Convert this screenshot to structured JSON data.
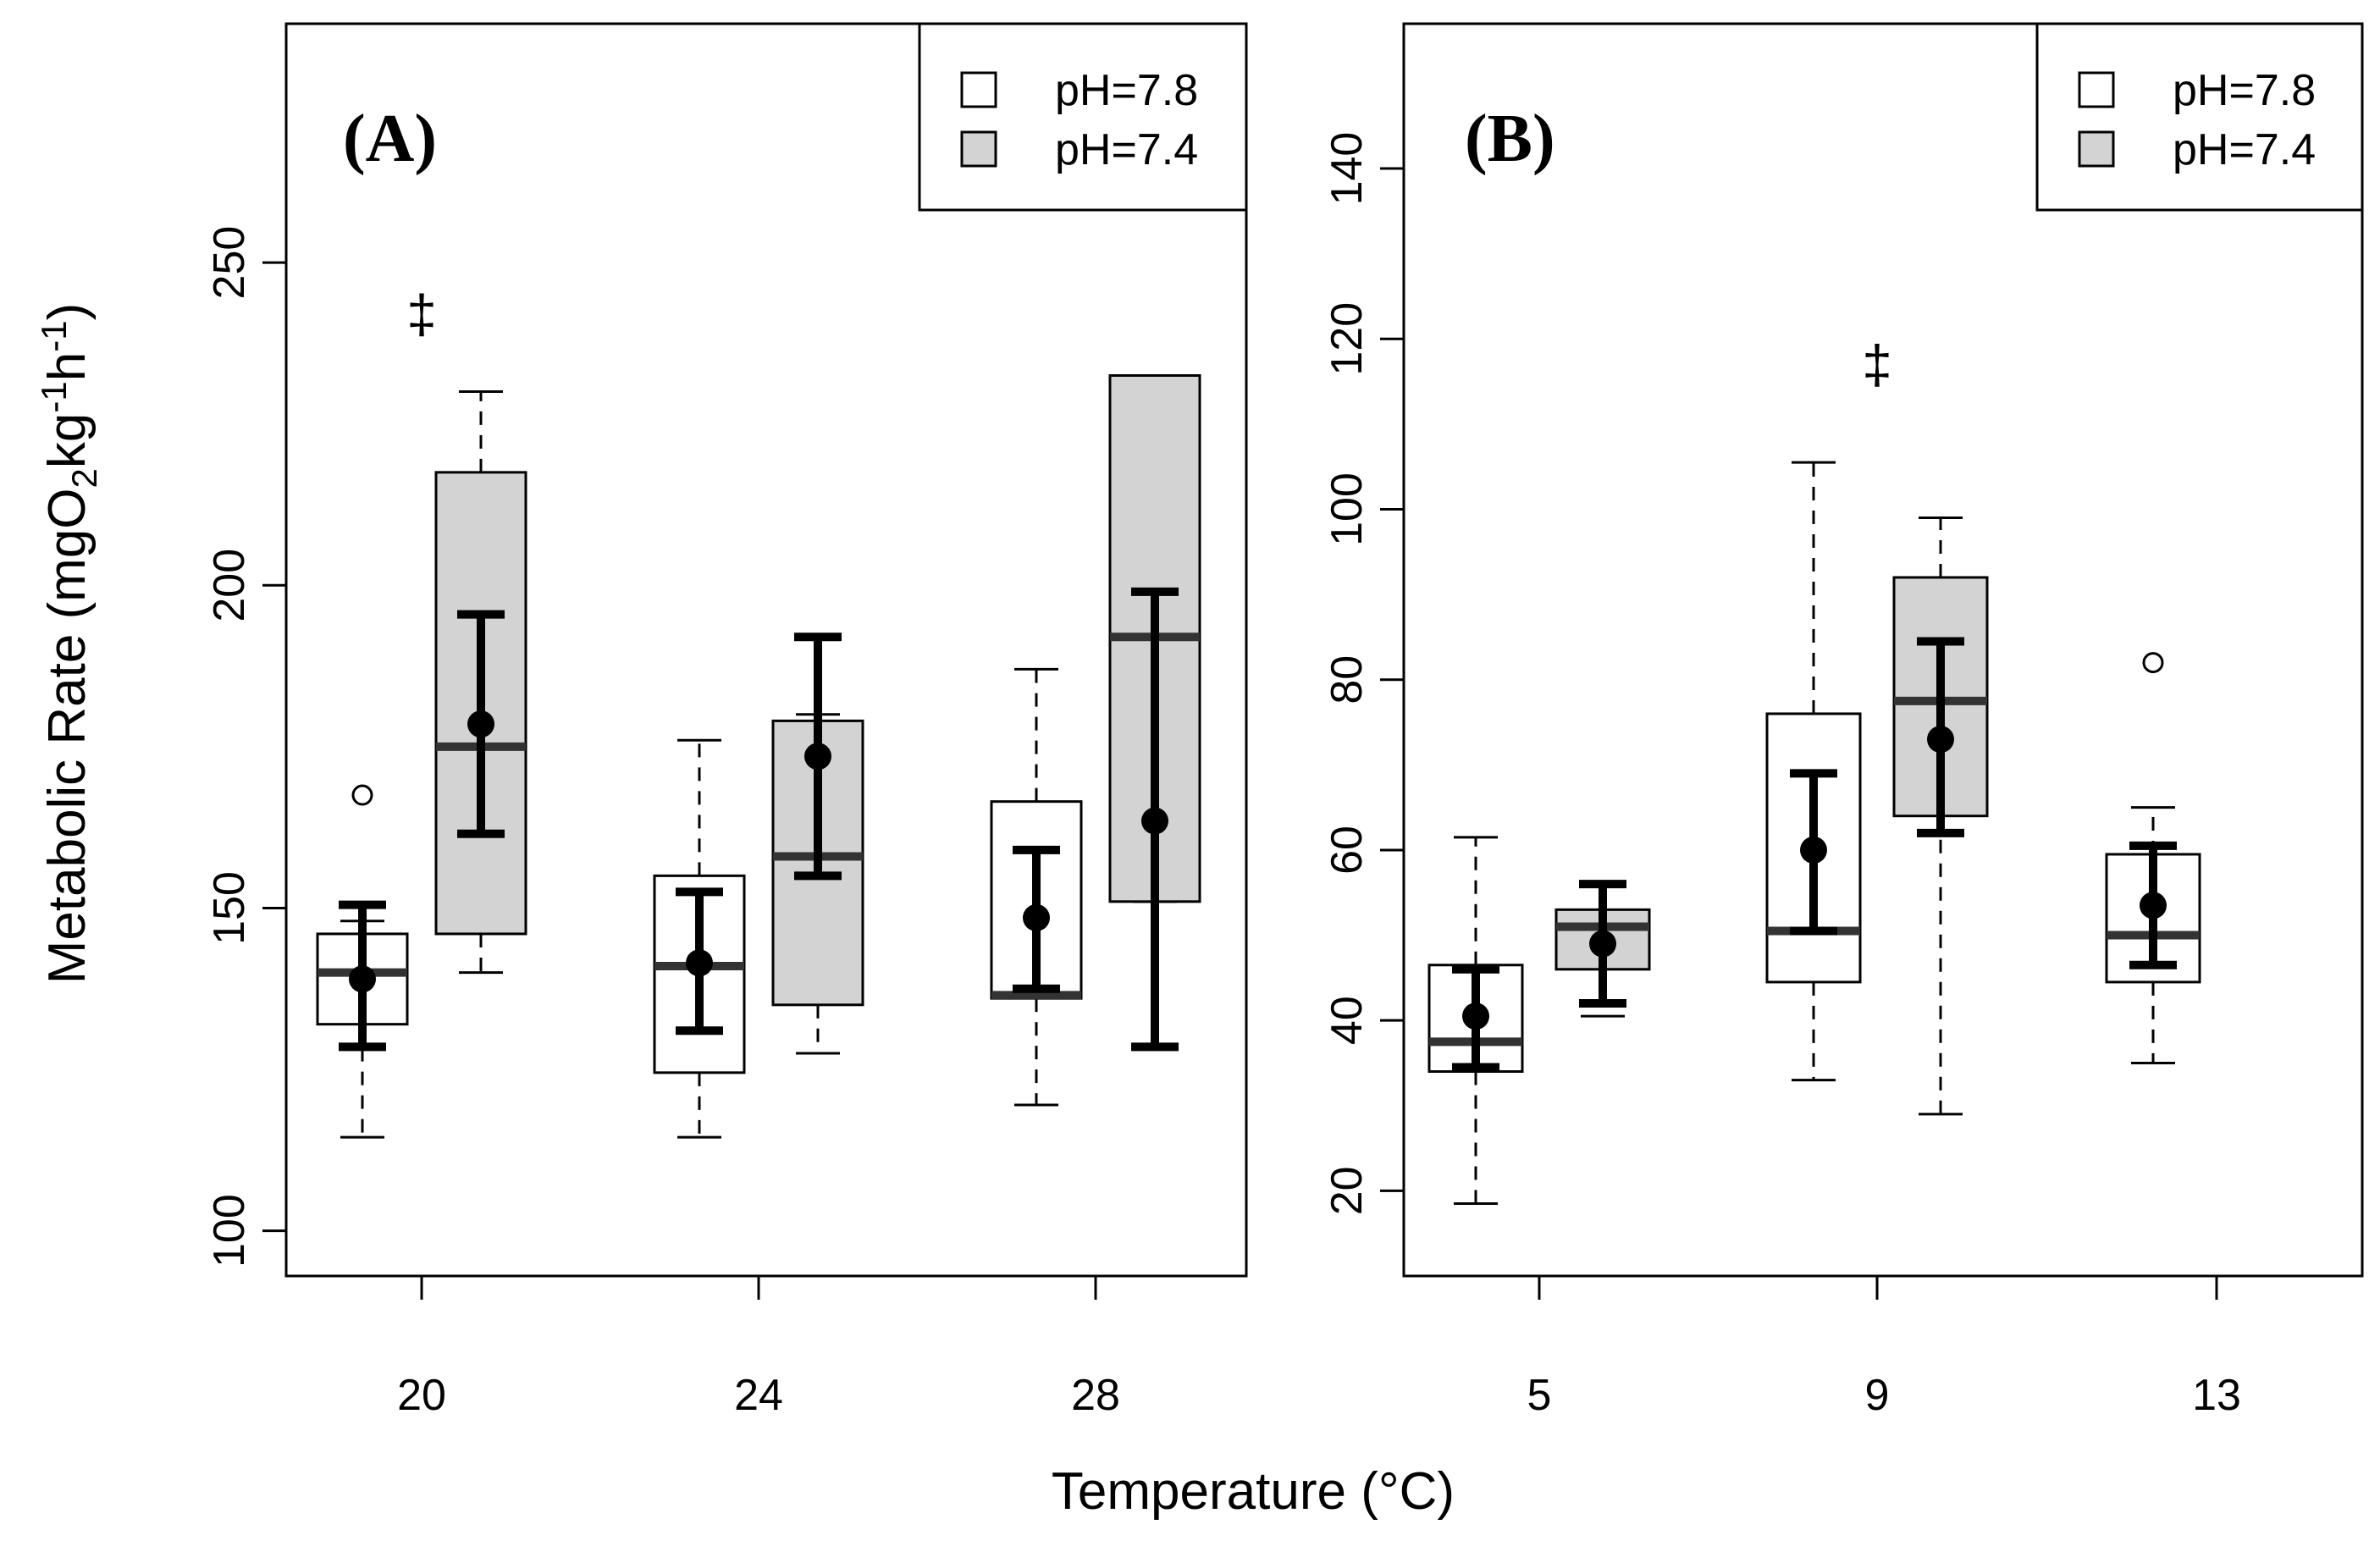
{
  "figure": {
    "ylabel_main": "Metabolic Rate (mgO",
    "ylabel_sub1": "2",
    "ylabel_mid": "kg",
    "ylabel_sup1": "-1",
    "ylabel_mid2": "h",
    "ylabel_sup2": "-1",
    "ylabel_close": ")",
    "xlabel": "Temperature (°C)"
  },
  "chart_data": [
    {
      "type": "box",
      "panel_label": "(A)",
      "xlabel": "Temperature (°C)",
      "ylabel": "Metabolic Rate (mgO2kg-1h-1)",
      "categories": [
        "20",
        "24",
        "28"
      ],
      "ylim": [
        93,
        287
      ],
      "yticks": [
        100,
        150,
        200,
        250
      ],
      "ytick_labels": [
        "100",
        "150",
        "200",
        "250"
      ],
      "legend": {
        "position": "top-right",
        "entries": [
          "pH=7.8",
          "pH=7.4"
        ]
      },
      "colors": {
        "pH=7.8": "#ffffff",
        "pH=7.4": "#d3d3d3"
      },
      "series": [
        {
          "name": "pH=7.8",
          "boxes": [
            {
              "whisker_low": 114.5,
              "q1": 132,
              "median": 140,
              "q3": 146,
              "whisker_high": 148,
              "outliers": [
                167.5
              ],
              "mean": 139,
              "ci": [
                128.5,
                150.5
              ]
            },
            {
              "whisker_low": 114.5,
              "q1": 124.5,
              "median": 141,
              "q3": 155,
              "whisker_high": 176,
              "outliers": [],
              "mean": 141.5,
              "ci": [
                131,
                152.5
              ]
            },
            {
              "whisker_low": 119.5,
              "q1": 136,
              "median": 136.5,
              "q3": 166.5,
              "whisker_high": 187,
              "outliers": [],
              "mean": 148.5,
              "ci": [
                137.5,
                159
              ]
            }
          ]
        },
        {
          "name": "pH=7.4",
          "boxes": [
            {
              "whisker_low": 140,
              "q1": 146,
              "median": 175,
              "q3": 217.5,
              "whisker_high": 230,
              "outliers": [],
              "mean": 178.5,
              "ci": [
                161.5,
                195.5
              ]
            },
            {
              "whisker_low": 127.5,
              "q1": 135,
              "median": 158,
              "q3": 179,
              "whisker_high": 180,
              "outliers": [],
              "mean": 173.5,
              "ci": [
                155,
                192
              ]
            },
            {
              "whisker_low": 151,
              "q1": 151,
              "median": 192,
              "q3": 232.5,
              "whisker_high": 232.5,
              "outliers": [],
              "mean": 163.5,
              "ci": [
                128.5,
                199
              ]
            }
          ]
        }
      ],
      "annotations": [
        {
          "text": "‡",
          "category": "20",
          "value": 242
        }
      ]
    },
    {
      "type": "box",
      "panel_label": "(B)",
      "xlabel": "Temperature (°C)",
      "ylabel": "Metabolic Rate (mgO2kg-1h-1)",
      "categories": [
        "5",
        "9",
        "13"
      ],
      "ylim": [
        10,
        157
      ],
      "yticks": [
        20,
        40,
        60,
        80,
        100,
        120,
        140
      ],
      "ytick_labels": [
        "20",
        "40",
        "60",
        "80",
        "100",
        "120",
        "140"
      ],
      "legend": {
        "position": "top-right",
        "entries": [
          "pH=7.8",
          "pH=7.4"
        ]
      },
      "colors": {
        "pH=7.8": "#ffffff",
        "pH=7.4": "#d3d3d3"
      },
      "series": [
        {
          "name": "pH=7.8",
          "boxes": [
            {
              "whisker_low": 18.5,
              "q1": 34,
              "median": 37.5,
              "q3": 46.5,
              "whisker_high": 61.5,
              "outliers": [],
              "mean": 40.5,
              "ci": [
                34.5,
                46
              ]
            },
            {
              "whisker_low": 33,
              "q1": 44.5,
              "median": 50.5,
              "q3": 76,
              "whisker_high": 105.5,
              "outliers": [],
              "mean": 60,
              "ci": [
                50.5,
                69
              ]
            },
            {
              "whisker_low": 35,
              "q1": 44.5,
              "median": 50,
              "q3": 59.5,
              "whisker_high": 65,
              "outliers": [
                82
              ],
              "mean": 53.5,
              "ci": [
                46.5,
                60.5
              ]
            }
          ]
        },
        {
          "name": "pH=7.4",
          "boxes": [
            {
              "whisker_low": 40.5,
              "q1": 46,
              "median": 51,
              "q3": 53,
              "whisker_high": 56,
              "outliers": [],
              "mean": 49,
              "ci": [
                42,
                56
              ]
            },
            {
              "whisker_low": 29,
              "q1": 64,
              "median": 77.5,
              "q3": 92,
              "whisker_high": 99,
              "outliers": [],
              "mean": 73,
              "ci": [
                62,
                84.5
              ]
            }
          ]
        }
      ],
      "annotations": [
        {
          "text": "‡",
          "category": "9",
          "value": 117
        }
      ]
    }
  ]
}
